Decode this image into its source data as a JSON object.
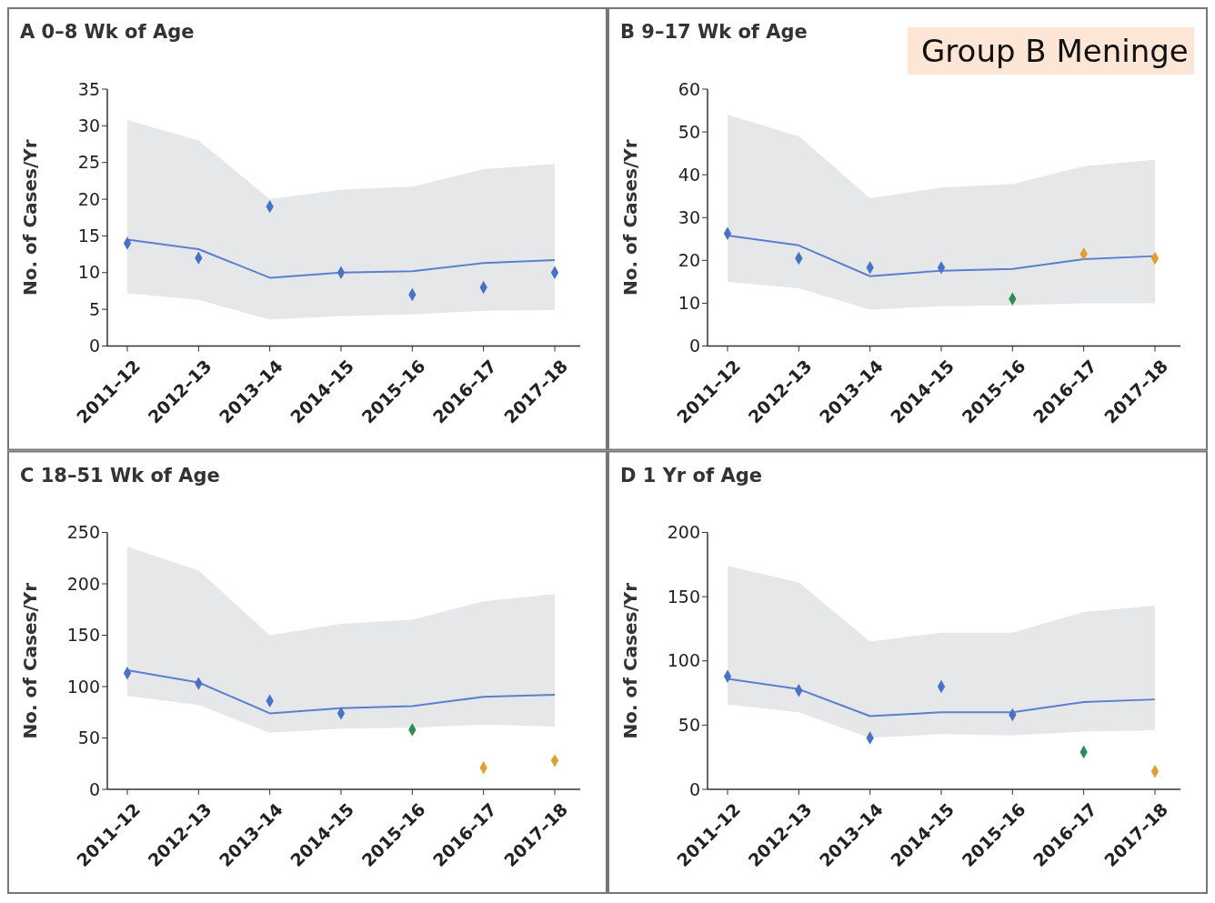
{
  "chart_data": [
    {
      "type": "line",
      "title": "A 0–8 Wk of Age",
      "ylabel": "No. of Cases/Yr",
      "categories": [
        "2011–12",
        "2012–13",
        "2013–14",
        "2014–15",
        "2015–16",
        "2016–17",
        "2017–18"
      ],
      "ylim": [
        0,
        35
      ],
      "yticks": [
        0,
        5,
        10,
        15,
        20,
        25,
        30,
        35
      ],
      "grid": false,
      "series": [
        {
          "color": "#5b7fd0",
          "values": [
            14.5,
            13.2,
            9.3,
            10.0,
            10.2,
            11.3,
            11.7
          ],
          "lower": [
            7.2,
            6.3,
            3.6,
            4.1,
            4.3,
            4.8,
            4.9
          ],
          "upper": [
            30.8,
            28,
            20,
            21.3,
            21.7,
            24.1,
            24.8
          ]
        },
        {
          "type": "scatter",
          "marker": "diamond",
          "colors": [
            "#4a72c4",
            "#4a72c4",
            "#4a72c4",
            "#4a72c4",
            "#4a72c4",
            "#4a72c4",
            "#4a72c4"
          ],
          "values": [
            14,
            12,
            19,
            10,
            7,
            8,
            10
          ]
        }
      ]
    },
    {
      "type": "line",
      "title": "B 9–17 Wk of Age",
      "ylabel": "No. of Cases/Yr",
      "categories": [
        "2011–12",
        "2012–13",
        "2013–14",
        "2014–15",
        "2015–16",
        "2016–17",
        "2017–18"
      ],
      "ylim": [
        0,
        60
      ],
      "yticks": [
        0,
        10,
        20,
        30,
        40,
        50,
        60
      ],
      "grid": false,
      "annotations": [
        "Group B Meninge"
      ],
      "series": [
        {
          "color": "#5b7fd0",
          "values": [
            25.8,
            23.5,
            16.3,
            17.6,
            18,
            20.3,
            21
          ],
          "lower": [
            15,
            13.5,
            8.5,
            9.3,
            9.5,
            10,
            10
          ],
          "upper": [
            54,
            49,
            34.5,
            37,
            37.8,
            42,
            43.5
          ]
        },
        {
          "type": "scatter",
          "marker": "diamond",
          "colors": [
            "#4a72c4",
            "#4a72c4",
            "#4a72c4",
            "#4a72c4",
            "#2e8b57",
            "#e0a030",
            "#e0a030"
          ],
          "values": [
            26.3,
            20.5,
            18.3,
            18.3,
            11,
            21.5,
            20.5
          ]
        }
      ]
    },
    {
      "type": "line",
      "title": "C 18–51 Wk of Age",
      "ylabel": "No. of Cases/Yr",
      "categories": [
        "2011–12",
        "2012–13",
        "2013–14",
        "2014–15",
        "2015–16",
        "2016–17",
        "2017–18"
      ],
      "ylim": [
        0,
        250
      ],
      "yticks": [
        0,
        50,
        100,
        150,
        200,
        250
      ],
      "grid": false,
      "series": [
        {
          "color": "#5b7fd0",
          "values": [
            116,
            104,
            74,
            79,
            81,
            90,
            92
          ],
          "lower": [
            91,
            82,
            55,
            59,
            60,
            63,
            61
          ],
          "upper": [
            236,
            213,
            150,
            161,
            165,
            183,
            190
          ]
        },
        {
          "type": "scatter",
          "marker": "diamond",
          "colors": [
            "#4a72c4",
            "#4a72c4",
            "#4a72c4",
            "#4a72c4",
            "#2e8b57",
            "#e0a030",
            "#e0a030"
          ],
          "values": [
            113,
            103,
            86,
            74,
            58,
            21,
            28
          ]
        }
      ]
    },
    {
      "type": "line",
      "title": "D 1 Yr of Age",
      "ylabel": "No. of Cases/Yr",
      "categories": [
        "2011–12",
        "2012–13",
        "2013–14",
        "2014–15",
        "2015–16",
        "2016–17",
        "2017–18"
      ],
      "ylim": [
        0,
        200
      ],
      "yticks": [
        0,
        50,
        100,
        150,
        200
      ],
      "grid": false,
      "series": [
        {
          "color": "#5b7fd0",
          "values": [
            86,
            78,
            57,
            60,
            60,
            68,
            70
          ],
          "lower": [
            66,
            60,
            40,
            43,
            42,
            45,
            46
          ],
          "upper": [
            174,
            161,
            115,
            122,
            122,
            138,
            143
          ]
        },
        {
          "type": "scatter",
          "marker": "diamond",
          "colors": [
            "#4a72c4",
            "#4a72c4",
            "#4a72c4",
            "#4a72c4",
            "#4a72c4",
            "#2e8b57",
            "#e0a030"
          ],
          "values": [
            88,
            77,
            40,
            80,
            58,
            29,
            14
          ]
        }
      ]
    }
  ]
}
